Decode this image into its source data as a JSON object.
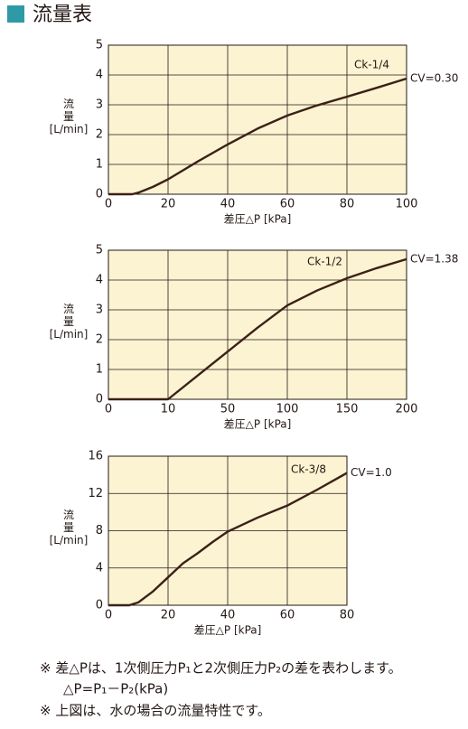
{
  "header": {
    "title": "流量表"
  },
  "chart_data": [
    {
      "type": "line",
      "annotation": "Ck-1/4",
      "y_label": [
        "流",
        "量",
        "[L/min]"
      ],
      "x_label": "差圧△P [kPa]",
      "xlim": [
        0,
        100
      ],
      "xticks": [
        0,
        20,
        40,
        60,
        80,
        100
      ],
      "ylim": [
        0,
        5
      ],
      "yticks": [
        0,
        1,
        2,
        3,
        4,
        5
      ],
      "grid": true,
      "background": "#fcf3d2",
      "series": [
        {
          "name": "CV=0.30",
          "color": "#3a2118",
          "x": [
            0,
            8,
            10,
            15,
            20,
            30,
            40,
            50,
            60,
            70,
            80,
            90,
            100
          ],
          "values": [
            0,
            0,
            0.05,
            0.25,
            0.5,
            1.1,
            1.67,
            2.2,
            2.64,
            2.98,
            3.27,
            3.57,
            3.88
          ]
        }
      ]
    },
    {
      "type": "line",
      "annotation": "Ck-1/2",
      "y_label": [
        "流",
        "量",
        "[L/min]"
      ],
      "x_label": "差圧△P [kPa]",
      "xscale": "tick-spaced",
      "xlim": [
        0,
        200
      ],
      "xticks": [
        0,
        10,
        50,
        100,
        150,
        200
      ],
      "ylim": [
        0,
        5
      ],
      "yticks": [
        0,
        1,
        2,
        3,
        4,
        5
      ],
      "grid": true,
      "background": "#fcf3d2",
      "series": [
        {
          "name": "CV=1.38",
          "color": "#3a2118",
          "x": [
            0,
            10,
            30,
            50,
            75,
            100,
            125,
            150,
            175,
            200
          ],
          "values": [
            0,
            0,
            0.8,
            1.6,
            2.4,
            3.15,
            3.65,
            4.06,
            4.4,
            4.7
          ]
        }
      ]
    },
    {
      "type": "line",
      "annotation": "Ck-3/8",
      "y_label": [
        "流",
        "量",
        "[L/min]"
      ],
      "x_label": "差圧△P [kPa]",
      "xlim": [
        0,
        80
      ],
      "xticks": [
        0,
        20,
        40,
        60,
        80
      ],
      "ylim": [
        0,
        16
      ],
      "yticks": [
        0,
        4,
        8,
        12,
        16
      ],
      "grid": true,
      "background": "#fcf3d2",
      "series": [
        {
          "name": "CV=1.0",
          "color": "#3a2118",
          "x": [
            0,
            7,
            10,
            15,
            20,
            25,
            30,
            35,
            40,
            50,
            60,
            70,
            80
          ],
          "values": [
            0,
            0,
            0.3,
            1.5,
            3.0,
            4.5,
            5.6,
            6.8,
            7.9,
            9.4,
            10.7,
            12.4,
            14.2
          ]
        }
      ]
    }
  ],
  "notes": [
    "※ 差△Pは、1次側圧力P₁と2次側圧力P₂の差を表わします。",
    "△P=P₁－P₂(kPa)",
    "※ 上図は、水の場合の流量特性です。"
  ]
}
